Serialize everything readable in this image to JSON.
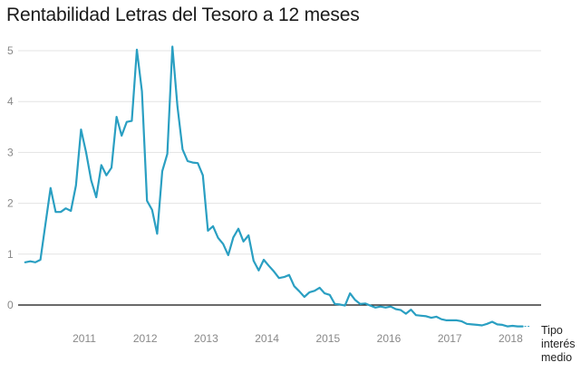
{
  "chart_data": {
    "type": "line",
    "title": "Rentabilidad Letras del Tesoro a 12 meses",
    "xlabel": "",
    "ylabel": "",
    "ylim": [
      -0.5,
      5.3
    ],
    "xlim": [
      2010.0,
      2018.55
    ],
    "grid": true,
    "y_ticks": [
      0,
      1,
      2,
      3,
      4,
      5
    ],
    "x_ticks": [
      2011,
      2012,
      2013,
      2014,
      2015,
      2016,
      2017,
      2018
    ],
    "color": "#2a9fc2",
    "series": [
      {
        "name": "Tipo interés medio",
        "start_year": 2010,
        "frequency": "monthly",
        "values": [
          0.84,
          0.86,
          0.84,
          0.89,
          1.6,
          2.3,
          1.83,
          1.83,
          1.9,
          1.85,
          2.35,
          3.45,
          3.0,
          2.45,
          2.12,
          2.75,
          2.55,
          2.7,
          3.7,
          3.33,
          3.6,
          3.62,
          5.02,
          4.2,
          2.05,
          1.87,
          1.4,
          2.63,
          2.97,
          5.08,
          3.9,
          3.06,
          2.83,
          2.8,
          2.79,
          2.55,
          1.46,
          1.55,
          1.32,
          1.2,
          0.98,
          1.33,
          1.5,
          1.25,
          1.37,
          0.87,
          0.68,
          0.89,
          0.77,
          0.66,
          0.53,
          0.55,
          0.59,
          0.37,
          0.27,
          0.16,
          0.25,
          0.28,
          0.34,
          0.23,
          0.2,
          0.02,
          0.01,
          -0.01,
          0.23,
          0.1,
          0.02,
          0.03,
          -0.01,
          -0.05,
          -0.03,
          -0.05,
          -0.03,
          -0.08,
          -0.1,
          -0.17,
          -0.09,
          -0.2,
          -0.21,
          -0.22,
          -0.25,
          -0.23,
          -0.28,
          -0.3,
          -0.3,
          -0.3,
          -0.32,
          -0.37,
          -0.38,
          -0.39,
          -0.4,
          -0.37,
          -0.33,
          -0.38,
          -0.39,
          -0.42,
          -0.41,
          -0.42,
          -0.42
        ]
      }
    ],
    "series_label_lines": [
      "Tipo",
      "interés",
      "medio"
    ]
  }
}
